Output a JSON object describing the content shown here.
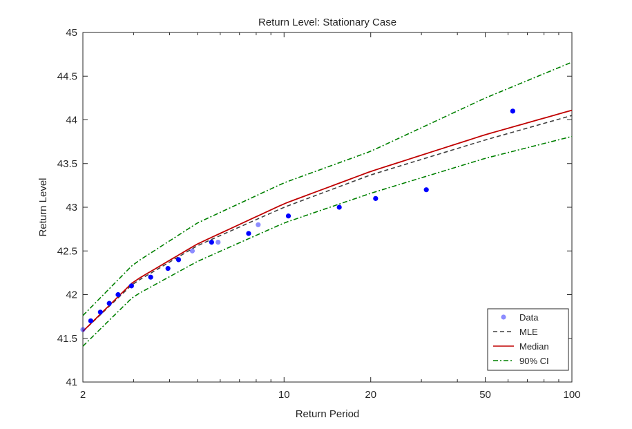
{
  "chart_data": {
    "type": "line",
    "title": "Return Level: Stationary Case",
    "xlabel": "Return Period",
    "ylabel": "Return Level",
    "xscale": "log",
    "xlim": [
      2,
      100
    ],
    "ylim": [
      41,
      45
    ],
    "xticks": [
      2,
      10,
      20,
      50,
      100
    ],
    "xtick_labels": [
      "2",
      "10",
      "20",
      "50",
      "100"
    ],
    "yticks": [
      41,
      41.5,
      42,
      42.5,
      43,
      43.5,
      44,
      44.5,
      45
    ],
    "ytick_labels": [
      "41",
      "41.5",
      "42",
      "42.5",
      "43",
      "43.5",
      "44",
      "44.5",
      "45"
    ],
    "grid": false,
    "legend_position": "bottom-right",
    "series": [
      {
        "name": "Data",
        "kind": "scatter",
        "color": "#0000ff",
        "x": [
          2.0,
          2.13,
          2.3,
          2.47,
          2.65,
          2.95,
          3.44,
          3.95,
          4.3,
          4.8,
          5.6,
          5.9,
          7.53,
          8.13,
          10.35,
          15.55,
          20.8,
          31.2,
          62.3
        ],
        "y": [
          41.6,
          41.7,
          41.8,
          41.9,
          42.0,
          42.1,
          42.2,
          42.3,
          42.4,
          42.5,
          42.6,
          42.6,
          42.7,
          42.8,
          42.9,
          43.0,
          43.1,
          43.2,
          44.1
        ],
        "opacity": [
          0.45,
          1,
          1,
          1,
          1,
          1,
          1,
          1,
          1,
          0.45,
          1,
          0.45,
          1,
          0.45,
          1,
          1,
          1,
          1,
          1
        ]
      },
      {
        "name": "MLE",
        "kind": "line",
        "style": "dashed",
        "color": "#404040",
        "x": [
          2,
          3,
          5,
          10,
          20,
          50,
          100
        ],
        "y": [
          41.58,
          42.13,
          42.56,
          43.0,
          43.37,
          43.77,
          44.05
        ]
      },
      {
        "name": "Median",
        "kind": "line",
        "style": "solid",
        "color": "#c00000",
        "x": [
          2,
          3,
          5,
          10,
          20,
          50,
          100
        ],
        "y": [
          41.58,
          42.15,
          42.58,
          43.04,
          43.41,
          43.83,
          44.11
        ]
      },
      {
        "name": "90% CI",
        "kind": "line",
        "style": "dashdot",
        "color": "#008000",
        "x": [
          2,
          3,
          5,
          10,
          20,
          50,
          100
        ],
        "y": [
          41.76,
          42.35,
          42.82,
          43.28,
          43.64,
          44.25,
          44.66
        ]
      },
      {
        "name": "",
        "kind": "line",
        "style": "dashdot",
        "color": "#008000",
        "x": [
          2,
          3,
          5,
          10,
          20,
          50,
          100
        ],
        "y": [
          41.41,
          41.98,
          42.38,
          42.82,
          43.16,
          43.56,
          43.81
        ]
      }
    ],
    "legend": [
      "Data",
      "MLE",
      "Median",
      "90% CI"
    ]
  }
}
